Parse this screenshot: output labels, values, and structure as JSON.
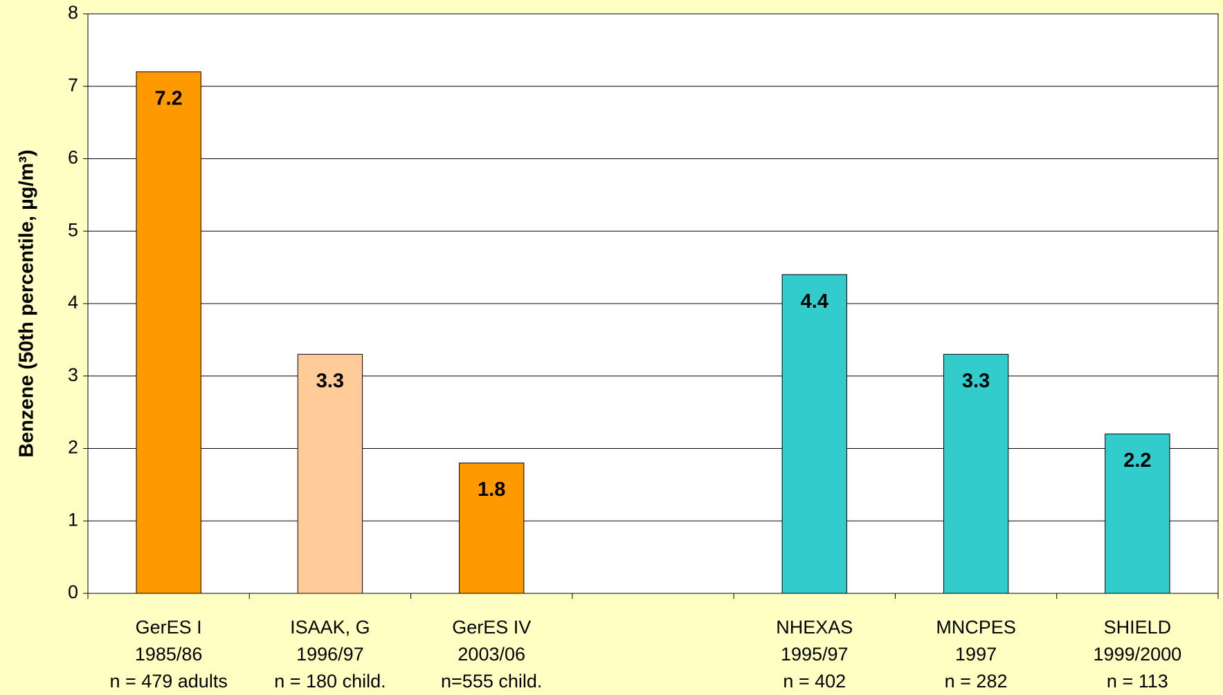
{
  "chart_data": {
    "type": "bar",
    "y_label": "Benzene (50th percentile, µg/m³)",
    "categories": [
      [
        "GerES I",
        "1985/86",
        "n = 479 adults"
      ],
      [
        "ISAAK, G",
        "1996/97",
        "n = 180 child."
      ],
      [
        "GerES IV",
        "2003/06",
        "n=555 child."
      ],
      null,
      [
        "NHEXAS",
        "1995/97",
        "n = 402"
      ],
      [
        "MNCPES",
        "1997",
        "n = 282"
      ],
      [
        "SHIELD",
        "1999/2000",
        "n = 113"
      ]
    ],
    "values": [
      7.2,
      3.3,
      1.8,
      null,
      4.4,
      3.3,
      2.2
    ],
    "colors": [
      "#ff9900",
      "#ffcc99",
      "#ff9900",
      null,
      "#33cccc",
      "#33cccc",
      "#33cccc"
    ],
    "ylim": [
      0,
      8
    ],
    "yticks": [
      0,
      1,
      2,
      3,
      4,
      5,
      6,
      7,
      8
    ],
    "grid": true
  }
}
